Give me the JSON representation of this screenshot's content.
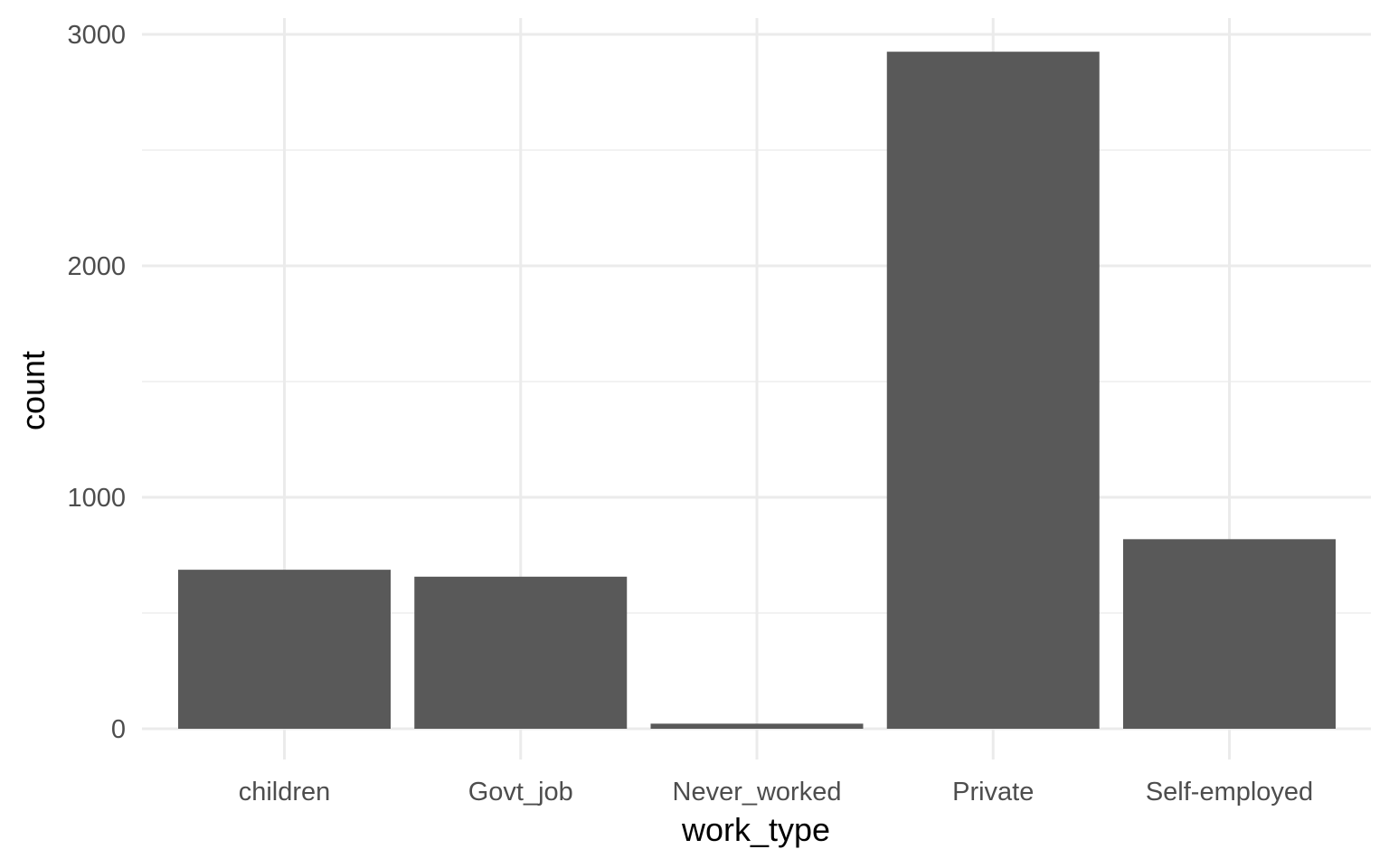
{
  "chart_data": {
    "type": "bar",
    "title": "",
    "xlabel": "work_type",
    "ylabel": "count",
    "categories": [
      "children",
      "Govt_job",
      "Never_worked",
      "Private",
      "Self-employed"
    ],
    "values": [
      687,
      657,
      22,
      2925,
      819
    ],
    "ylim": [
      0,
      3000
    ],
    "yticks": [
      0,
      1000,
      2000,
      3000
    ],
    "grid": true,
    "legend": "none"
  },
  "colors": {
    "bar": "#595959",
    "grid_major": "#ebebeb",
    "grid_minor": "#f2f2f2",
    "tick_text": "#4d4d4d",
    "axis_title": "#000000",
    "background": "#ffffff"
  }
}
